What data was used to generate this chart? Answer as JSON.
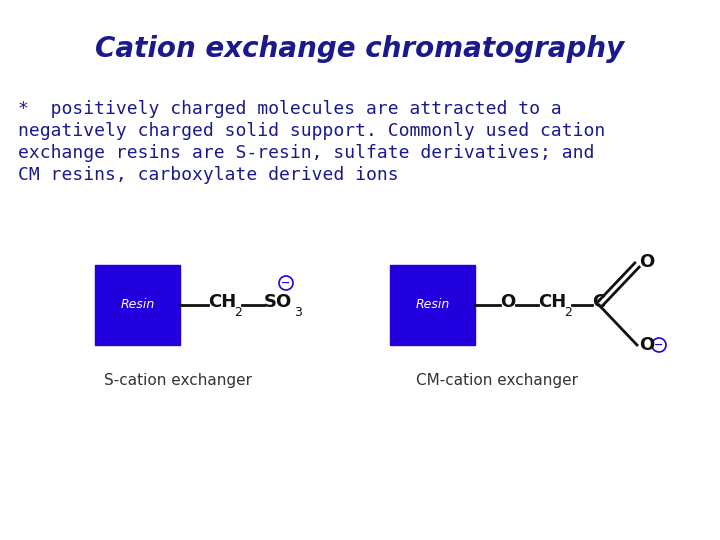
{
  "title": "Cation exchange chromatography",
  "title_color": "#1a1a8c",
  "title_fontsize": 20,
  "body_color": "#1a1a8c",
  "body_fontsize": 13,
  "background_color": "#ffffff",
  "resin_color": "#2200dd",
  "resin_text_color": "#ffffff",
  "resin_text": "Resin",
  "label1": "S-cation exchanger",
  "label2": "CM-cation exchanger",
  "label_color": "#333333",
  "label_fontsize": 11,
  "chem_color": "#111111",
  "neg_charge_color": "#2200dd",
  "body_lines": [
    "*  positively charged molecules are attracted to a",
    "negatively charged solid support. Commonly used cation",
    "exchange resins are S-resin, sulfate derivatives; and",
    "CM resins, carboxylate derived ions"
  ]
}
